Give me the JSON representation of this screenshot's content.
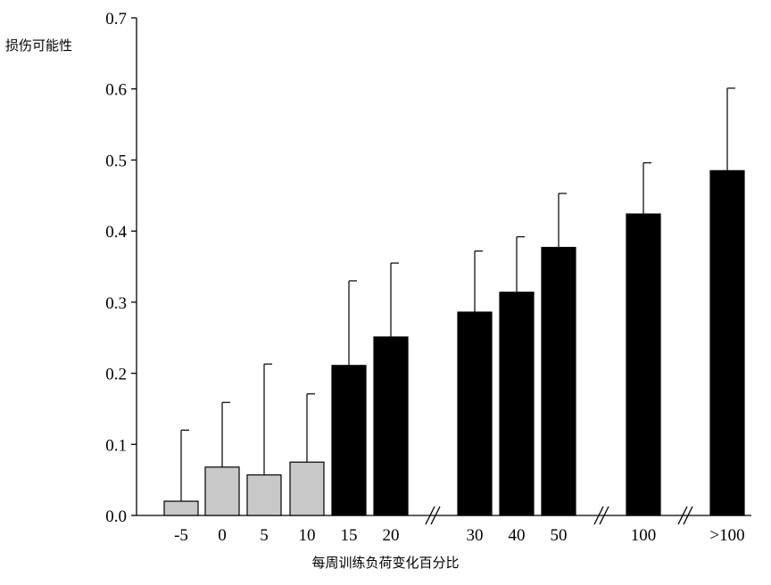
{
  "chart_data": {
    "type": "bar",
    "ylabel": "损伤可能性",
    "xlabel": "每周训练负荷变化百分比",
    "ylim": [
      0,
      0.7
    ],
    "yticks": [
      "0.0",
      "0.1",
      "0.2",
      "0.3",
      "0.4",
      "0.5",
      "0.6",
      "0.7"
    ],
    "categories": [
      "-5",
      "0",
      "5",
      "10",
      "15",
      "20",
      "30",
      "40",
      "50",
      "100",
      ">100"
    ],
    "values": [
      0.02,
      0.068,
      0.057,
      0.075,
      0.211,
      0.251,
      0.286,
      0.314,
      0.377,
      0.424,
      0.485
    ],
    "error_upper": [
      0.12,
      0.159,
      0.213,
      0.171,
      0.33,
      0.355,
      0.372,
      0.392,
      0.453,
      0.496,
      0.601
    ],
    "bar_colors": [
      "#c8c8c8",
      "#c8c8c8",
      "#c8c8c8",
      "#c8c8c8",
      "#000000",
      "#000000",
      "#000000",
      "#000000",
      "#000000",
      "#000000",
      "#000000"
    ],
    "axis_breaks_after": [
      "20",
      "50",
      "100"
    ],
    "grid": false,
    "legend": "none"
  }
}
